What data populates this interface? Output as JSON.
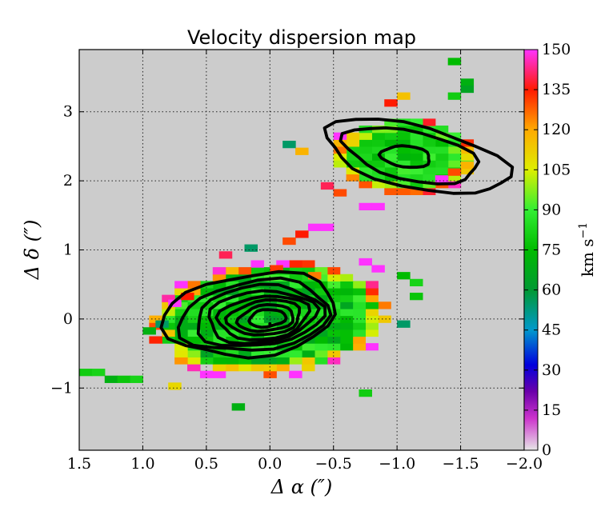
{
  "chart_data": {
    "type": "heatmap",
    "title": "Velocity dispersion map",
    "xlabel": "Δ α  (″)",
    "ylabel": "Δ δ  (″)",
    "xlim": [
      1.5,
      -2.0
    ],
    "ylim": [
      -1.9,
      3.9
    ],
    "x_ticks": [
      1.5,
      1.0,
      0.5,
      0.0,
      -0.5,
      -1.0,
      -1.5,
      -2.0
    ],
    "x_tick_labels": [
      "1.5",
      "1.0",
      "0.5",
      "0.0",
      "−0.5",
      "−1.0",
      "−1.5",
      "−2.0"
    ],
    "y_ticks": [
      -1,
      0,
      1,
      2,
      3
    ],
    "y_tick_labels": [
      "−1",
      "0",
      "1",
      "2",
      "3"
    ],
    "grid": true,
    "background_color": "#cccccc",
    "pixel_size_arcsec": 0.1,
    "colorbar": {
      "label": "km s",
      "label_exponent": "−1",
      "min": 0,
      "max": 150,
      "ticks": [
        0,
        15,
        30,
        45,
        60,
        75,
        90,
        105,
        120,
        135,
        150
      ],
      "tick_labels": [
        "0",
        "15",
        "30",
        "45",
        "60",
        "75",
        "90",
        "105",
        "120",
        "135",
        "150"
      ],
      "colormap": [
        {
          "v": 0,
          "c": "#e6e6e6"
        },
        {
          "v": 12,
          "c": "#cc33cc"
        },
        {
          "v": 22,
          "c": "#6a00aa"
        },
        {
          "v": 32,
          "c": "#0000dd"
        },
        {
          "v": 45,
          "c": "#0099cc"
        },
        {
          "v": 60,
          "c": "#009933"
        },
        {
          "v": 75,
          "c": "#00bb00"
        },
        {
          "v": 90,
          "c": "#33ee33"
        },
        {
          "v": 105,
          "c": "#ddee00"
        },
        {
          "v": 120,
          "c": "#ffaa00"
        },
        {
          "v": 135,
          "c": "#ff1a00"
        },
        {
          "v": 150,
          "c": "#ff33ff"
        }
      ]
    },
    "regions": [
      {
        "name": "main-source",
        "center": [
          0.0,
          0.0
        ],
        "grid_cols": [
          -9,
          13
        ],
        "grid_rows": [
          -13,
          10
        ],
        "shape": {
          "rx": 0.95,
          "ry": 0.78,
          "tilt_deg": -25
        },
        "dispersion_model": {
          "base": 78,
          "range": 14,
          "rim_boost": 45,
          "rim_start": 0.78
        },
        "extra_cells": [
          {
            "x": 1.45,
            "y": -0.77,
            "v": 80
          },
          {
            "x": 1.35,
            "y": -0.77,
            "v": 82
          },
          {
            "x": 1.25,
            "y": -0.87,
            "v": 70
          },
          {
            "x": 1.15,
            "y": -0.87,
            "v": 78
          },
          {
            "x": 1.05,
            "y": -0.87,
            "v": 82
          },
          {
            "x": -0.35,
            "y": 1.33,
            "v": 150
          },
          {
            "x": -0.45,
            "y": 1.33,
            "v": 150
          },
          {
            "x": -0.25,
            "y": 1.23,
            "v": 135
          },
          {
            "x": -0.15,
            "y": 1.13,
            "v": 130
          },
          {
            "x": 0.15,
            "y": 1.03,
            "v": 55
          },
          {
            "x": 0.35,
            "y": 0.93,
            "v": 140
          },
          {
            "x": -0.75,
            "y": 0.83,
            "v": 150
          },
          {
            "x": -0.85,
            "y": 0.73,
            "v": 150
          },
          {
            "x": -1.05,
            "y": 0.63,
            "v": 75
          },
          {
            "x": -1.15,
            "y": 0.53,
            "v": 82
          },
          {
            "x": -1.15,
            "y": 0.33,
            "v": 78
          },
          {
            "x": -1.05,
            "y": -0.07,
            "v": 55
          },
          {
            "x": 0.75,
            "y": -0.97,
            "v": 110
          },
          {
            "x": 0.75,
            "y": 0.23,
            "v": 150
          },
          {
            "x": 0.65,
            "y": 0.33,
            "v": 135
          },
          {
            "x": 0.85,
            "y": -0.07,
            "v": 55
          },
          {
            "x": 0.95,
            "y": -0.17,
            "v": 70
          },
          {
            "x": -0.75,
            "y": -1.07,
            "v": 80
          },
          {
            "x": 0.25,
            "y": -1.27,
            "v": 70
          },
          {
            "x": -0.35,
            "y": 0.63,
            "v": 125
          },
          {
            "x": -0.05,
            "y": 0.73,
            "v": 132
          }
        ],
        "contour_levels": [
          [
            0.71,
            0.57,
            -28,
            0.15,
            0.06
          ],
          [
            0.62,
            0.48,
            -28,
            0.12,
            0.04
          ],
          [
            0.52,
            0.42,
            -28,
            0.09,
            0.04
          ],
          [
            0.44,
            0.36,
            -28,
            0.07,
            0.03
          ],
          [
            0.37,
            0.3,
            -28,
            0.05,
            0.02
          ],
          [
            0.3,
            0.24,
            -28,
            0.04,
            0.02
          ],
          [
            0.23,
            0.18,
            -28,
            0.03,
            0.01
          ],
          [
            0.15,
            0.12,
            -28,
            0.02,
            0.01
          ]
        ]
      },
      {
        "name": "north-source",
        "center": [
          -1.05,
          2.35
        ],
        "grid_cols": [
          -6,
          6
        ],
        "grid_rows": [
          -7,
          8
        ],
        "shape": {
          "rx": 0.55,
          "ry": 0.55,
          "tilt_deg": -30
        },
        "dispersion_model": {
          "base": 82,
          "range": 10,
          "rim_boost": 40,
          "rim_start": 0.7
        },
        "extra_cells": [
          {
            "x": -1.45,
            "y": 3.73,
            "v": 75
          },
          {
            "x": -1.55,
            "y": 3.43,
            "v": 70
          },
          {
            "x": -1.55,
            "y": 3.33,
            "v": 65
          },
          {
            "x": -1.45,
            "y": 3.23,
            "v": 80
          },
          {
            "x": -1.05,
            "y": 3.23,
            "v": 115
          },
          {
            "x": -0.95,
            "y": 3.13,
            "v": 135
          },
          {
            "x": -0.85,
            "y": 1.63,
            "v": 150
          },
          {
            "x": -0.75,
            "y": 1.63,
            "v": 150
          },
          {
            "x": -0.55,
            "y": 1.83,
            "v": 130
          },
          {
            "x": -0.45,
            "y": 1.93,
            "v": 140
          },
          {
            "x": -1.35,
            "y": 2.03,
            "v": 150
          },
          {
            "x": -1.45,
            "y": 2.13,
            "v": 130
          },
          {
            "x": -0.25,
            "y": 2.43,
            "v": 118
          },
          {
            "x": -0.15,
            "y": 2.53,
            "v": 55
          },
          {
            "x": -1.55,
            "y": 2.23,
            "v": 118
          }
        ],
        "contour_levels": [
          [
            0.8,
            0.42,
            30,
            -0.1,
            0.0
          ],
          [
            0.58,
            0.33,
            30,
            -0.06,
            0.02
          ],
          [
            0.2,
            0.15,
            20,
            -0.02,
            0.0
          ]
        ]
      }
    ]
  }
}
